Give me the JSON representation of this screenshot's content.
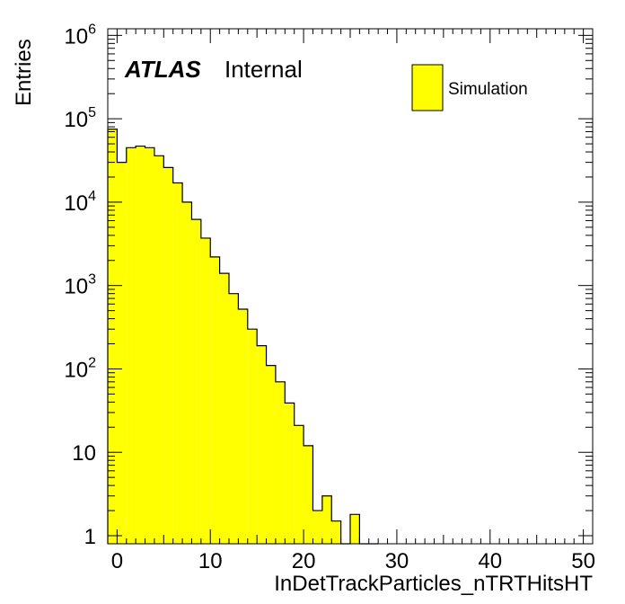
{
  "chart_data": {
    "type": "bar",
    "style": "histogram",
    "experiment_label": "ATLAS",
    "status_label": "Internal",
    "xlabel": "InDetTrackParticles_nTRTHitsHT",
    "ylabel": "Entries",
    "xlim": [
      -1,
      51
    ],
    "ylim": [
      0.8,
      1200000
    ],
    "yscale": "log",
    "grid": false,
    "legend_position": "top-right",
    "fill_color": "#ffff00",
    "line_color": "#000000",
    "x_ticks": [
      "0",
      "10",
      "20",
      "30",
      "40",
      "50"
    ],
    "y_ticks": [
      {
        "base": "1",
        "exp": ""
      },
      {
        "base": "10",
        "exp": ""
      },
      {
        "base": "10",
        "exp": "2"
      },
      {
        "base": "10",
        "exp": "3"
      },
      {
        "base": "10",
        "exp": "4"
      },
      {
        "base": "10",
        "exp": "5"
      },
      {
        "base": "10",
        "exp": "6"
      }
    ],
    "series": [
      {
        "name": "Simulation",
        "bin_low": [
          -1,
          0,
          1,
          2,
          3,
          4,
          5,
          6,
          7,
          8,
          9,
          10,
          11,
          12,
          13,
          14,
          15,
          16,
          17,
          18,
          19,
          20,
          21,
          22,
          23,
          24,
          25,
          26,
          27
        ],
        "values": [
          75000,
          30000,
          45000,
          47000,
          45000,
          36000,
          26000,
          17000,
          10000,
          6200,
          3700,
          2200,
          1400,
          800,
          520,
          300,
          190,
          110,
          70,
          39,
          21,
          12,
          2,
          3,
          1.5,
          0.5,
          1.8,
          0.7,
          0
        ]
      }
    ]
  }
}
